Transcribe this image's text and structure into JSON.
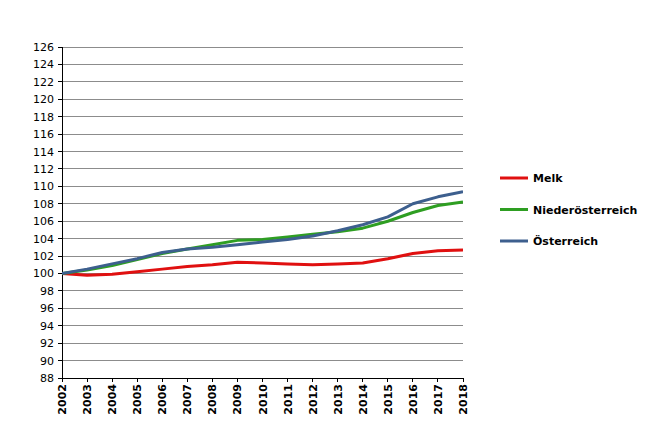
{
  "chart_data": {
    "type": "line",
    "categories": [
      "2002",
      "2003",
      "2004",
      "2005",
      "2006",
      "2007",
      "2008",
      "2009",
      "2010",
      "2011",
      "2012",
      "2013",
      "2014",
      "2015",
      "2016",
      "2017",
      "2018"
    ],
    "series": [
      {
        "name": "Melk",
        "color": "#e01010",
        "values": [
          100,
          99.8,
          99.9,
          100.2,
          100.5,
          100.8,
          101.0,
          101.3,
          101.2,
          101.1,
          101.0,
          101.1,
          101.2,
          101.7,
          102.3,
          102.6,
          102.7
        ]
      },
      {
        "name": "Niederösterreich",
        "color": "#2e9e22",
        "values": [
          100,
          100.4,
          100.9,
          101.6,
          102.3,
          102.8,
          103.3,
          103.8,
          103.9,
          104.2,
          104.5,
          104.8,
          105.2,
          106.0,
          107.0,
          107.8,
          108.2
        ]
      },
      {
        "name": "Österreich",
        "color": "#3d5f8e",
        "values": [
          100,
          100.5,
          101.1,
          101.7,
          102.4,
          102.8,
          103.0,
          103.3,
          103.6,
          103.9,
          104.3,
          104.9,
          105.6,
          106.5,
          108.0,
          108.8,
          109.4
        ]
      }
    ],
    "ylim": [
      88,
      126
    ],
    "yticks": [
      88,
      90,
      92,
      94,
      96,
      98,
      100,
      102,
      104,
      106,
      108,
      110,
      112,
      114,
      116,
      118,
      120,
      122,
      124,
      126
    ],
    "grid": true,
    "legend": "right"
  }
}
